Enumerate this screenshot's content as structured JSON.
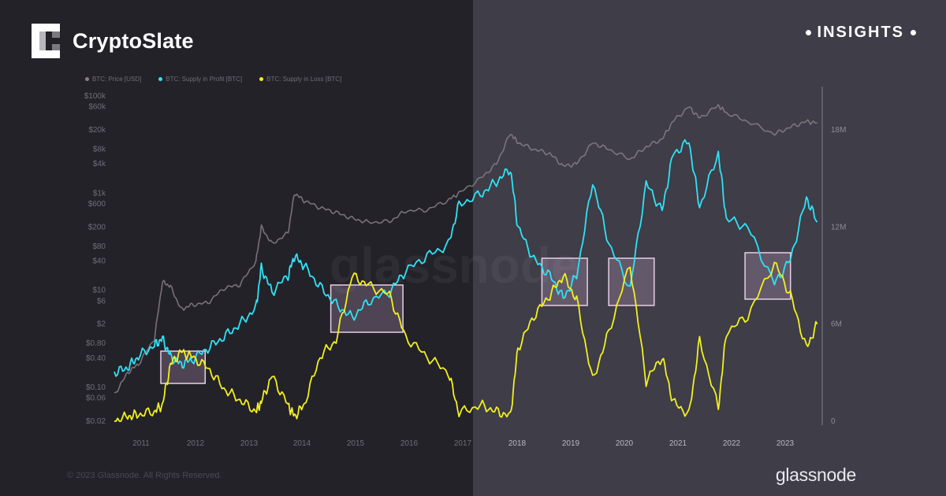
{
  "header": {
    "logo_text": "CryptoSlate",
    "insights_label": "INSIGHTS"
  },
  "footer": {
    "copyright": "© 2023 Glassnode. All Rights Reserved.",
    "brand": "glassnode"
  },
  "watermark": "glassnode",
  "colors": {
    "price": "#8a7e86",
    "profit": "#2fe3f5",
    "loss": "#f2f01e",
    "highlight_box": "#e9cfe6"
  },
  "chart_data": {
    "type": "line",
    "title": "",
    "legend_position": "top-left",
    "y_scale_left": "log",
    "y_left_ticks": [
      "$100k",
      "$60k",
      "$20k",
      "$8k",
      "$4k",
      "$1k",
      "$600",
      "$200",
      "$80",
      "$40",
      "$10",
      "$6",
      "$2",
      "$0.80",
      "$0.40",
      "$0.10",
      "$0.06",
      "$0.02"
    ],
    "y_right_ticks": [
      "18M",
      "12M",
      "6M",
      "0"
    ],
    "y_right_range": [
      0,
      18000000
    ],
    "x_ticks": [
      "2011",
      "2012",
      "2013",
      "2014",
      "2015",
      "2016",
      "2017",
      "2018",
      "2019",
      "2020",
      "2021",
      "2022",
      "2023"
    ],
    "series": [
      {
        "name": "BTC: Price [USD]",
        "axis": "left",
        "x": [
          2010.55,
          2010.8,
          2011.0,
          2011.3,
          2011.45,
          2011.6,
          2011.8,
          2012.0,
          2012.3,
          2012.6,
          2012.9,
          2013.2,
          2013.3,
          2013.5,
          2013.8,
          2013.92,
          2014.1,
          2014.4,
          2014.7,
          2015.0,
          2015.3,
          2015.7,
          2016.0,
          2016.4,
          2016.8,
          2017.0,
          2017.4,
          2017.7,
          2017.96,
          2018.1,
          2018.4,
          2018.7,
          2018.95,
          2019.2,
          2019.5,
          2019.8,
          2020.2,
          2020.5,
          2020.8,
          2021.0,
          2021.3,
          2021.5,
          2021.85,
          2022.0,
          2022.4,
          2022.9,
          2023.2,
          2023.5,
          2023.7
        ],
        "values": [
          0.07,
          0.2,
          0.3,
          1.0,
          15,
          12,
          4,
          5,
          5.5,
          11,
          13,
          40,
          200,
          90,
          150,
          1000,
          700,
          500,
          400,
          300,
          250,
          260,
          430,
          450,
          720,
          1000,
          2000,
          4000,
          17000,
          11000,
          8000,
          6500,
          3600,
          4000,
          11000,
          8000,
          5000,
          9000,
          13000,
          30000,
          60000,
          35000,
          64000,
          45000,
          30000,
          16500,
          23000,
          30000,
          28000
        ]
      },
      {
        "name": "BTC: Supply in Profit [BTC]",
        "axis": "right",
        "x": [
          2010.55,
          2010.8,
          2011.0,
          2011.3,
          2011.45,
          2011.6,
          2011.8,
          2012.0,
          2012.3,
          2012.6,
          2012.9,
          2013.2,
          2013.3,
          2013.5,
          2013.8,
          2013.92,
          2014.1,
          2014.4,
          2014.7,
          2015.0,
          2015.3,
          2015.7,
          2016.0,
          2016.4,
          2016.8,
          2017.0,
          2017.4,
          2017.7,
          2017.96,
          2018.1,
          2018.4,
          2018.7,
          2018.95,
          2019.2,
          2019.5,
          2019.8,
          2020.2,
          2020.5,
          2020.8,
          2021.0,
          2021.3,
          2021.5,
          2021.85,
          2022.0,
          2022.4,
          2022.9,
          2023.2,
          2023.5,
          2023.7
        ],
        "values": [
          3.0,
          3.3,
          4.0,
          4.7,
          5.1,
          4.0,
          3.5,
          3.8,
          4.5,
          5.2,
          6.0,
          7.0,
          9.5,
          8.0,
          9.0,
          10.2,
          9.6,
          8.3,
          7.2,
          6.4,
          7.4,
          8.0,
          9.3,
          10.2,
          10.9,
          13.4,
          14.0,
          14.8,
          15.6,
          12.0,
          10.0,
          9.0,
          7.6,
          9.0,
          14.8,
          11.0,
          8.2,
          14.7,
          13.0,
          16.5,
          17.3,
          13.2,
          16.6,
          12.5,
          12.0,
          8.5,
          10.0,
          13.8,
          12.3
        ]
      },
      {
        "name": "BTC: Supply in Loss [BTC]",
        "axis": "right",
        "x": [
          2010.55,
          2010.8,
          2011.0,
          2011.3,
          2011.45,
          2011.6,
          2011.8,
          2012.0,
          2012.3,
          2012.6,
          2012.9,
          2013.2,
          2013.3,
          2013.5,
          2013.8,
          2013.92,
          2014.1,
          2014.4,
          2014.7,
          2015.0,
          2015.3,
          2015.7,
          2016.0,
          2016.4,
          2016.8,
          2017.0,
          2017.4,
          2017.7,
          2017.96,
          2018.1,
          2018.4,
          2018.7,
          2018.95,
          2019.2,
          2019.5,
          2019.8,
          2020.2,
          2020.5,
          2020.8,
          2021.0,
          2021.3,
          2021.5,
          2021.85,
          2022.0,
          2022.4,
          2022.9,
          2023.2,
          2023.5,
          2023.7
        ],
        "values": [
          0.0,
          0.3,
          0.4,
          0.6,
          1.0,
          3.5,
          4.3,
          4.0,
          3.3,
          2.0,
          1.3,
          0.6,
          1.2,
          2.8,
          1.0,
          0.3,
          1.0,
          4.0,
          5.0,
          9.0,
          8.4,
          7.8,
          5.2,
          4.0,
          3.0,
          0.5,
          1.0,
          0.6,
          0.3,
          4.5,
          6.5,
          7.8,
          9.0,
          7.5,
          2.5,
          5.5,
          9.7,
          2.5,
          4.0,
          1.2,
          0.4,
          5.0,
          0.8,
          5.5,
          6.5,
          9.8,
          7.8,
          4.5,
          6.0
        ]
      }
    ],
    "highlight_ranges": [
      [
        2011.42,
        2012.25
      ],
      [
        2014.6,
        2015.95
      ],
      [
        2018.55,
        2019.4
      ],
      [
        2019.8,
        2020.65
      ],
      [
        2022.35,
        2023.2
      ]
    ]
  }
}
